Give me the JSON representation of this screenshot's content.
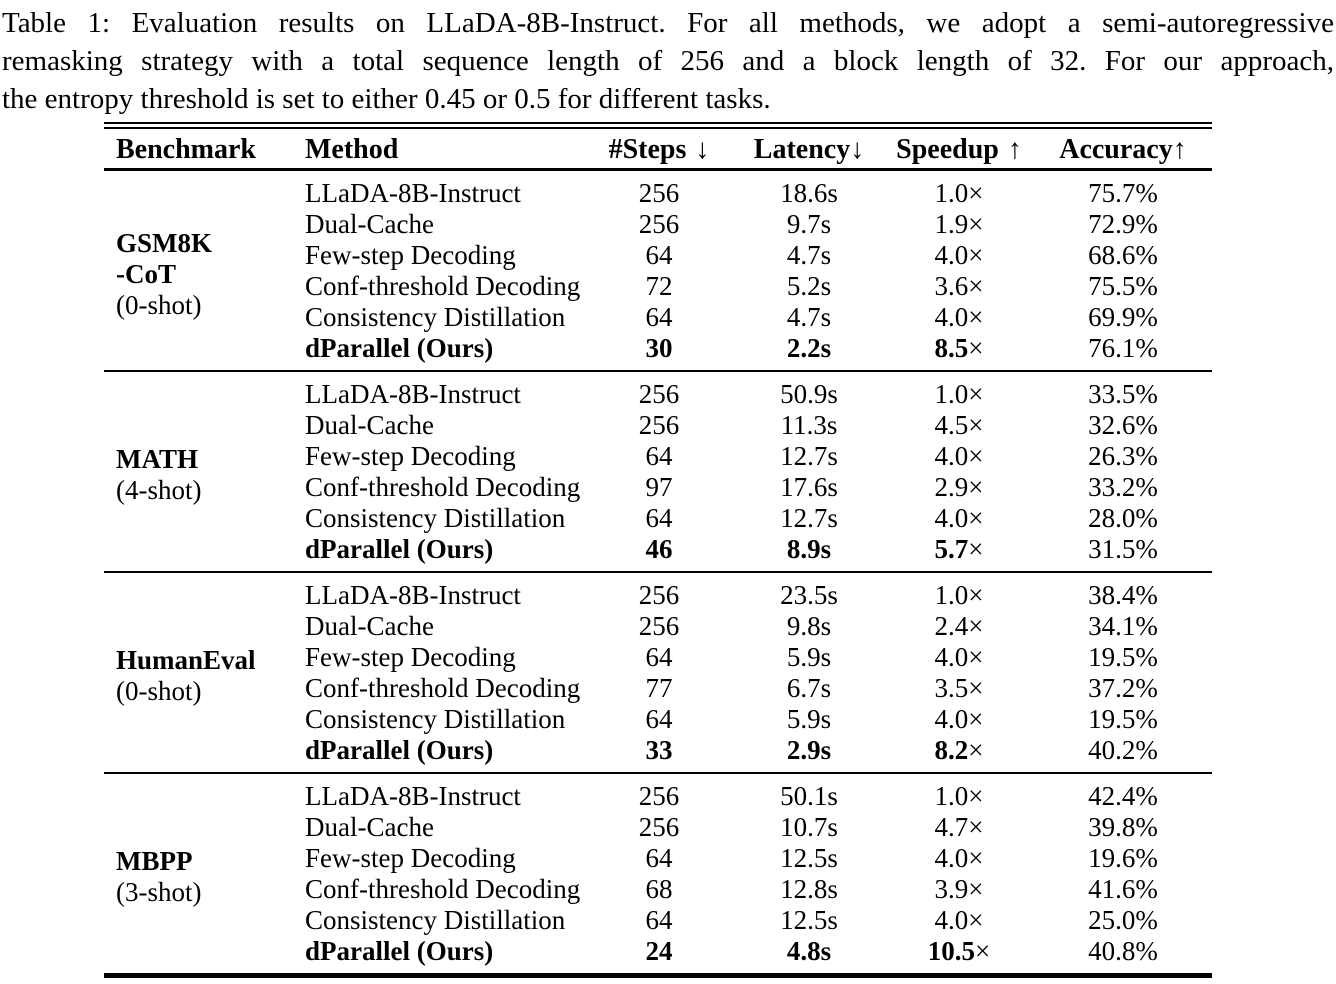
{
  "caption": {
    "lines": [
      "Table 1: Evaluation results on LLaDA-8B-Instruct. For all methods, we adopt a semi-autoregressive",
      "remasking strategy with a total sequence length of 256 and a block length of 32. For our approach,",
      "the entropy threshold is set to either 0.45 or 0.5 for different tasks."
    ]
  },
  "table": {
    "columns": [
      {
        "label": "Benchmark",
        "arrow": ""
      },
      {
        "label": "Method",
        "arrow": ""
      },
      {
        "label": "#Steps",
        "arrow": "↓"
      },
      {
        "label": "Latency",
        "arrow": "↓"
      },
      {
        "label": "Speedup",
        "arrow": "↑"
      },
      {
        "label": "Accuracy",
        "arrow": "↑"
      }
    ],
    "blocks": [
      {
        "benchmark": "GSM8K\n-CoT",
        "shots": "(0-shot)",
        "rows": [
          {
            "method": "LLaDA-8B-Instruct",
            "steps": "256",
            "latency": "18.6s",
            "speedup": "1.0×",
            "accuracy": "75.7%",
            "bold": false
          },
          {
            "method": "Dual-Cache",
            "steps": "256",
            "latency": "9.7s",
            "speedup": "1.9×",
            "accuracy": "72.9%",
            "bold": false
          },
          {
            "method": "Few-step Decoding",
            "steps": "64",
            "latency": "4.7s",
            "speedup": "4.0×",
            "accuracy": "68.6%",
            "bold": false
          },
          {
            "method": "Conf-threshold Decoding",
            "steps": "72",
            "latency": "5.2s",
            "speedup": "3.6×",
            "accuracy": "75.5%",
            "bold": false
          },
          {
            "method": "Consistency Distillation",
            "steps": "64",
            "latency": "4.7s",
            "speedup": "4.0×",
            "accuracy": "69.9%",
            "bold": false
          },
          {
            "method": "dParallel (Ours)",
            "steps": "30",
            "latency": "2.2s",
            "speedup": "8.5×",
            "accuracy": "76.1%",
            "bold": true
          }
        ]
      },
      {
        "benchmark": "MATH",
        "shots": "(4-shot)",
        "rows": [
          {
            "method": "LLaDA-8B-Instruct",
            "steps": "256",
            "latency": "50.9s",
            "speedup": "1.0×",
            "accuracy": "33.5%",
            "bold": false
          },
          {
            "method": "Dual-Cache",
            "steps": "256",
            "latency": "11.3s",
            "speedup": "4.5×",
            "accuracy": "32.6%",
            "bold": false
          },
          {
            "method": "Few-step Decoding",
            "steps": "64",
            "latency": "12.7s",
            "speedup": "4.0×",
            "accuracy": "26.3%",
            "bold": false
          },
          {
            "method": "Conf-threshold Decoding",
            "steps": "97",
            "latency": "17.6s",
            "speedup": "2.9×",
            "accuracy": "33.2%",
            "bold": false
          },
          {
            "method": "Consistency Distillation",
            "steps": "64",
            "latency": "12.7s",
            "speedup": "4.0×",
            "accuracy": "28.0%",
            "bold": false
          },
          {
            "method": "dParallel (Ours)",
            "steps": "46",
            "latency": "8.9s",
            "speedup": "5.7×",
            "accuracy": "31.5%",
            "bold": true
          }
        ]
      },
      {
        "benchmark": "HumanEval",
        "shots": "(0-shot)",
        "rows": [
          {
            "method": "LLaDA-8B-Instruct",
            "steps": "256",
            "latency": "23.5s",
            "speedup": "1.0×",
            "accuracy": "38.4%",
            "bold": false
          },
          {
            "method": "Dual-Cache",
            "steps": "256",
            "latency": "9.8s",
            "speedup": "2.4×",
            "accuracy": "34.1%",
            "bold": false
          },
          {
            "method": "Few-step Decoding",
            "steps": "64",
            "latency": "5.9s",
            "speedup": "4.0×",
            "accuracy": "19.5%",
            "bold": false
          },
          {
            "method": "Conf-threshold Decoding",
            "steps": "77",
            "latency": "6.7s",
            "speedup": "3.5×",
            "accuracy": "37.2%",
            "bold": false
          },
          {
            "method": "Consistency Distillation",
            "steps": "64",
            "latency": "5.9s",
            "speedup": "4.0×",
            "accuracy": "19.5%",
            "bold": false
          },
          {
            "method": "dParallel (Ours)",
            "steps": "33",
            "latency": "2.9s",
            "speedup": "8.2×",
            "accuracy": "40.2%",
            "bold": true
          }
        ]
      },
      {
        "benchmark": "MBPP",
        "shots": "(3-shot)",
        "rows": [
          {
            "method": "LLaDA-8B-Instruct",
            "steps": "256",
            "latency": "50.1s",
            "speedup": "1.0×",
            "accuracy": "42.4%",
            "bold": false
          },
          {
            "method": "Dual-Cache",
            "steps": "256",
            "latency": "10.7s",
            "speedup": "4.7×",
            "accuracy": "39.8%",
            "bold": false
          },
          {
            "method": "Few-step Decoding",
            "steps": "64",
            "latency": "12.5s",
            "speedup": "4.0×",
            "accuracy": "19.6%",
            "bold": false
          },
          {
            "method": "Conf-threshold Decoding",
            "steps": "68",
            "latency": "12.8s",
            "speedup": "3.9×",
            "accuracy": "41.6%",
            "bold": false
          },
          {
            "method": "Consistency Distillation",
            "steps": "64",
            "latency": "12.5s",
            "speedup": "4.0×",
            "accuracy": "25.0%",
            "bold": false
          },
          {
            "method": "dParallel (Ours)",
            "steps": "24",
            "latency": "4.8s",
            "speedup": "10.5×",
            "accuracy": "40.8%",
            "bold": true
          }
        ]
      }
    ]
  }
}
